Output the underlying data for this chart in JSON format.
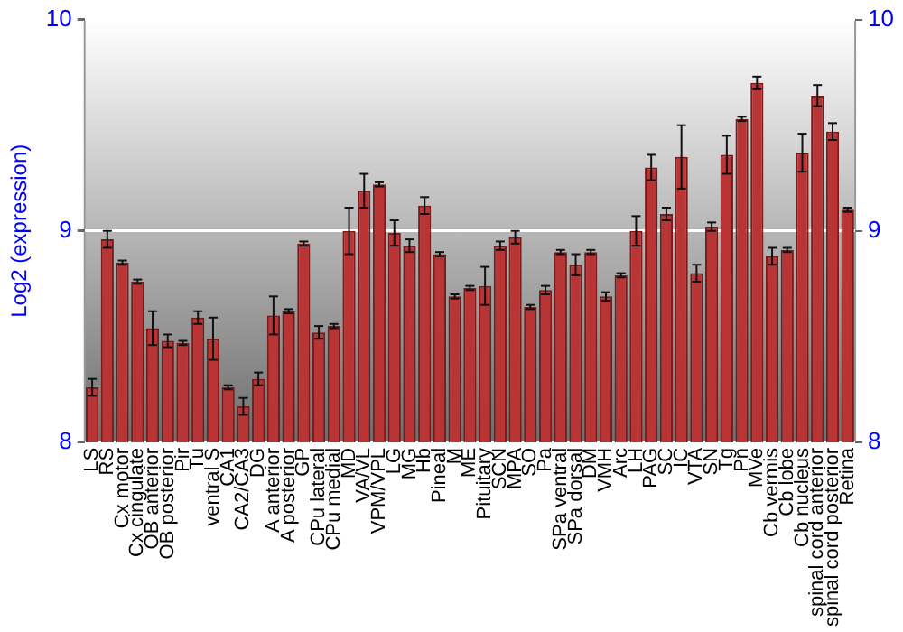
{
  "chart_data": {
    "type": "bar",
    "ylabel": "Log2 (expression)",
    "categories": [
      "LS",
      "RS",
      "Cx motor",
      "Cx cingulate",
      "OB anterior",
      "OB posterior",
      "Pir",
      "Tu",
      "ventral S",
      "CA1",
      "CA2/CA3",
      "DG",
      "A anterior",
      "A posterior",
      "GP",
      "CPu lateral",
      "CPu medial",
      "MD",
      "VA/VL",
      "VPM/VPL",
      "LG",
      "MG",
      "Hb",
      "Pineal",
      "M",
      "ME",
      "Pituitary",
      "SCN",
      "MPA",
      "SO",
      "Pa",
      "SPa ventral",
      "SPa dorsal",
      "DM",
      "VMH",
      "Arc",
      "LH",
      "PAG",
      "SC",
      "IC",
      "VTA",
      "SN",
      "Tg",
      "Pn",
      "MVe",
      "Cb vermis",
      "Cb lobe",
      "Cb nucleus",
      "spinal cord anterior",
      "spinal cord posterior",
      "Retina"
    ],
    "values": [
      8.26,
      8.96,
      8.85,
      8.76,
      8.54,
      8.48,
      8.47,
      8.59,
      8.49,
      8.26,
      8.17,
      8.3,
      8.6,
      8.62,
      8.94,
      8.52,
      8.55,
      9.0,
      9.19,
      9.22,
      8.99,
      8.93,
      9.12,
      8.89,
      8.69,
      8.73,
      8.74,
      8.93,
      8.97,
      8.64,
      8.72,
      8.9,
      8.84,
      8.9,
      8.69,
      8.79,
      9.0,
      9.3,
      9.08,
      9.35,
      8.8,
      9.02,
      9.36,
      9.53,
      9.7,
      8.88,
      8.91,
      9.37,
      9.64,
      9.47,
      9.1
    ],
    "errors": [
      0.04,
      0.04,
      0.01,
      0.01,
      0.08,
      0.03,
      0.01,
      0.03,
      0.1,
      0.01,
      0.04,
      0.03,
      0.09,
      0.01,
      0.01,
      0.03,
      0.01,
      0.11,
      0.08,
      0.01,
      0.06,
      0.03,
      0.04,
      0.01,
      0.01,
      0.01,
      0.09,
      0.02,
      0.03,
      0.01,
      0.02,
      0.01,
      0.05,
      0.01,
      0.02,
      0.01,
      0.07,
      0.06,
      0.03,
      0.15,
      0.04,
      0.02,
      0.09,
      0.01,
      0.03,
      0.04,
      0.01,
      0.09,
      0.05,
      0.04,
      0.01
    ],
    "color": "#b93434",
    "ylim": [
      8,
      10
    ],
    "yticks": [
      8,
      9,
      10
    ],
    "y2lim": [
      8,
      10
    ],
    "y2ticks": [
      8,
      9,
      10
    ],
    "grid": "y"
  }
}
